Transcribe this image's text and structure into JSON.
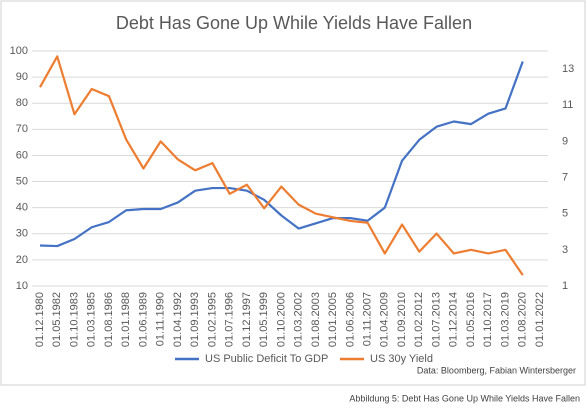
{
  "chart_data": {
    "type": "line",
    "title": "Debt Has Gone Up While Yields Have Fallen",
    "categories": [
      "01.12.1980",
      "01.05.1982",
      "01.10.1983",
      "01.03.1985",
      "01.08.1986",
      "01.01.1988",
      "01.06.1989",
      "01.11.1990",
      "01.04.1992",
      "01.09.1993",
      "01.02.1995",
      "01.07.1996",
      "01.12.1997",
      "01.05.1999",
      "01.10.2000",
      "01.03.2002",
      "01.08.2003",
      "01.01.2005",
      "01.06.2006",
      "01.11.2007",
      "01.04.2009",
      "01.09.2010",
      "01.02.2012",
      "01.07.2013",
      "01.12.2014",
      "01.05.2016",
      "01.10.2017",
      "01.03.2019",
      "01.08.2020",
      "01.01.2022"
    ],
    "series": [
      {
        "name": "US Public Deficit To GDP",
        "color": "#4472c4",
        "axis": "y",
        "values": [
          25.5,
          25.3,
          28,
          32.5,
          34.5,
          39,
          39.5,
          39.5,
          42,
          46.5,
          47.5,
          47.5,
          46.5,
          43,
          37,
          32,
          34,
          36,
          36,
          35,
          40,
          58,
          66,
          71,
          73,
          72,
          76,
          78,
          96,
          null
        ]
      },
      {
        "name": "US 30y Yield",
        "color": "#ed7d31",
        "axis": "y2",
        "values": [
          12,
          13.7,
          10.5,
          11.9,
          11.5,
          9.1,
          7.5,
          9,
          8,
          7.4,
          7.8,
          6.1,
          6.6,
          5.3,
          6.5,
          5.5,
          5,
          4.8,
          4.6,
          4.5,
          2.8,
          4.4,
          2.9,
          3.9,
          2.8,
          3,
          2.8,
          3,
          1.6,
          null
        ]
      }
    ],
    "ylim": [
      10,
      100
    ],
    "yticks": [
      10,
      20,
      30,
      40,
      50,
      60,
      70,
      80,
      90,
      100
    ],
    "y2lim": [
      1,
      14
    ],
    "y2ticks": [
      1,
      3,
      5,
      7,
      9,
      11,
      13
    ],
    "grid": true,
    "legend": "bottom",
    "source": "Data: Bloomberg, Fabian Wintersberger",
    "caption": "Abbildung 5: Debt Has Gone Up While Yields Have Fallen"
  }
}
